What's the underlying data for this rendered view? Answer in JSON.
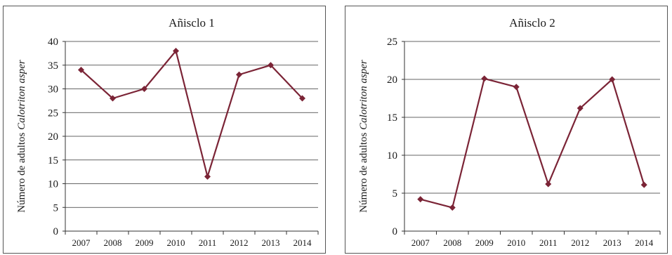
{
  "chart_data": [
    {
      "type": "line",
      "title": "Añisclo 1",
      "ylabel": "Número de adultos ",
      "ylabel_italic": "Calotriton asper",
      "categories": [
        "2007",
        "2008",
        "2009",
        "2010",
        "2011",
        "2012",
        "2013",
        "2014"
      ],
      "values": [
        34,
        28,
        30,
        38,
        11.5,
        33,
        35,
        28
      ],
      "ylim": [
        0,
        40
      ],
      "yticks": [
        "0",
        "5",
        "10",
        "15",
        "20",
        "25",
        "30",
        "35",
        "40"
      ],
      "grid": true,
      "legend": "none",
      "color": "#7b2436"
    },
    {
      "type": "line",
      "title": "Añisclo 2",
      "ylabel": "Número de adultos ",
      "ylabel_italic": "Calotriton asper",
      "categories": [
        "2007",
        "2008",
        "2009",
        "2010",
        "2011",
        "2012",
        "2013",
        "2014"
      ],
      "values": [
        4.2,
        3.1,
        20.1,
        19,
        6.2,
        16.2,
        20,
        6.1
      ],
      "ylim": [
        0,
        25
      ],
      "yticks": [
        "0",
        "5",
        "10",
        "15",
        "20",
        "25"
      ],
      "grid": true,
      "legend": "none",
      "color": "#7b2436"
    }
  ]
}
